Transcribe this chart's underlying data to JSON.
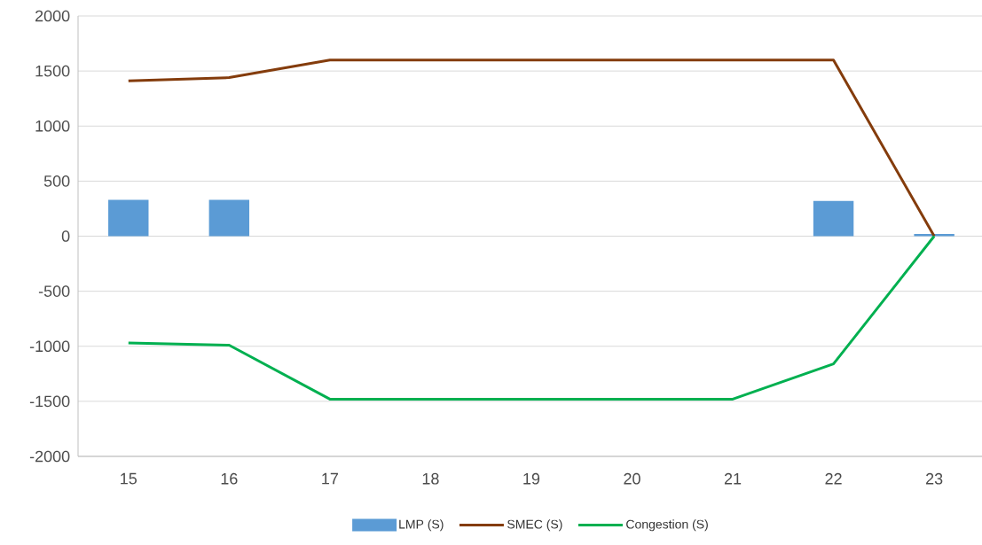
{
  "chart_data": {
    "type": "line",
    "categories": [
      "15",
      "16",
      "17",
      "18",
      "19",
      "20",
      "21",
      "22",
      "23"
    ],
    "series": [
      {
        "name": "LMP (S)",
        "type": "bar",
        "color": "#5b9bd5",
        "values": [
          330,
          330,
          0,
          0,
          0,
          0,
          0,
          320,
          20
        ]
      },
      {
        "name": "SMEC (S)",
        "color": "#843c0c",
        "values": [
          1410,
          1440,
          1600,
          1600,
          1600,
          1600,
          1600,
          1600,
          0
        ]
      },
      {
        "name": "Congestion (S)",
        "color": "#00b050",
        "values": [
          -970,
          -990,
          -1480,
          -1480,
          -1480,
          -1480,
          -1480,
          -1160,
          0
        ]
      }
    ],
    "ylim": [
      -2000,
      2000
    ],
    "yticks": [
      -2000,
      -1500,
      -1000,
      -500,
      0,
      500,
      1000,
      1500,
      2000
    ],
    "grid": "y",
    "legend": "bottom"
  }
}
